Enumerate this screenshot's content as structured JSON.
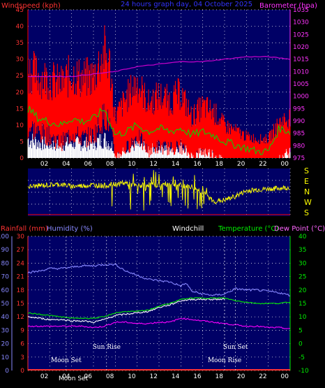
{
  "header": {
    "wind_title": "Windspeed (kph)",
    "date_title": "24 hours graph day, 04 October 2025",
    "baro_title": "Barometer (hpa)",
    "rain_title": "Rainfall (mm)",
    "humidity_title": "Humidity (%)",
    "windchill_title": "Windchill",
    "temperature_title": "Temperature (°C)",
    "dewpoint_title": "Dew Point (°C)"
  },
  "annotations": {
    "moon_set": "Moon Set",
    "sun_rise": "Sun Rise",
    "sun_set": "Sun Set",
    "moon_rise": "Moon Rise",
    "moon_phase_bottom": "Moon Set"
  },
  "colors": {
    "wind_avg": "#ff0000",
    "wind_gust": "#00dd00",
    "wind_low": "#ffffff",
    "barometer": "#cc00cc",
    "direction": "#ffff00",
    "rain": "#ff3333",
    "humidity": "#8888ff",
    "temperature": "#00ee00",
    "dewpoint": "#ff00ff",
    "windchill": "#ffffff",
    "plot_bg": "#000066"
  },
  "chart_data": [
    {
      "type": "line",
      "title": "24 hours graph day, 04 October 2025",
      "ylabel": "Windspeed (kph)",
      "y2label": "Barometer (hpa)",
      "x_ticks": [
        "02",
        "04",
        "06",
        "08",
        "10",
        "12",
        "14",
        "16",
        "18",
        "20",
        "22",
        "00"
      ],
      "x_range": [
        0,
        24
      ],
      "ylim": [
        0,
        45
      ],
      "y_ticks": [
        0,
        5,
        10,
        15,
        20,
        25,
        30,
        35,
        40,
        45
      ],
      "y2lim": [
        975,
        1035
      ],
      "y2_ticks": [
        975,
        980,
        985,
        990,
        995,
        1000,
        1005,
        1010,
        1015,
        1020,
        1025,
        1030,
        1035
      ],
      "grid": true,
      "series": [
        {
          "name": "Windspeed",
          "x": [
            0,
            1,
            2,
            3,
            4,
            5,
            6,
            7,
            7.5,
            8,
            9,
            10,
            11,
            12,
            13,
            14,
            15,
            16,
            17,
            18,
            19,
            20,
            21,
            22,
            23,
            24
          ],
          "values": [
            20,
            17,
            16,
            13,
            17,
            15,
            16,
            24,
            20,
            8,
            11,
            16,
            10,
            12,
            11,
            12,
            8,
            10,
            9,
            6,
            5,
            4,
            3,
            3,
            7,
            10
          ]
        },
        {
          "name": "Gust",
          "x": [
            0,
            1,
            2,
            3,
            4,
            5,
            6,
            7,
            7.5,
            8,
            9,
            10,
            11,
            12,
            13,
            14,
            15,
            16,
            17,
            18,
            19,
            20,
            21,
            22,
            23,
            24
          ],
          "values": [
            33,
            30,
            29,
            27,
            31,
            29,
            30,
            39,
            34,
            15,
            22,
            28,
            20,
            23,
            21,
            24,
            15,
            19,
            17,
            12,
            10,
            8,
            7,
            7,
            13,
            15
          ]
        },
        {
          "name": "Average",
          "x": [
            0,
            1,
            2,
            3,
            4,
            5,
            6,
            7,
            8,
            9,
            10,
            11,
            12,
            13,
            14,
            15,
            16,
            17,
            18,
            19,
            20,
            21,
            22,
            23,
            24
          ],
          "values": [
            15,
            12,
            11,
            10,
            12,
            11,
            12,
            15,
            7,
            8,
            10,
            8,
            9,
            8,
            9,
            7,
            8,
            7,
            5,
            4,
            3,
            2,
            2,
            9,
            8
          ]
        },
        {
          "name": "Barometer",
          "x": [
            0,
            2,
            4,
            6,
            8,
            10,
            12,
            14,
            16,
            18,
            20,
            22,
            24
          ],
          "values": [
            1008,
            1008,
            1008,
            1009,
            1010,
            1012,
            1013,
            1014,
            1014,
            1015,
            1016,
            1016,
            1015
          ]
        }
      ]
    },
    {
      "type": "line",
      "ylabel": "S E N W S",
      "y_ticks": [
        "S",
        "E",
        "N",
        "W",
        "S"
      ],
      "x_range": [
        0,
        24
      ],
      "ylim": [
        0,
        360
      ],
      "series": [
        {
          "name": "Direction",
          "x": [
            0,
            1,
            2,
            3,
            4,
            5,
            6,
            7,
            8,
            9,
            10,
            11,
            12,
            13,
            14,
            15,
            16,
            17,
            18,
            19,
            20,
            21,
            22,
            23,
            24
          ],
          "values": [
            220,
            230,
            235,
            240,
            225,
            230,
            235,
            230,
            240,
            250,
            225,
            240,
            235,
            245,
            230,
            220,
            180,
            110,
            120,
            150,
            190,
            200,
            205,
            210,
            215
          ]
        }
      ]
    },
    {
      "type": "line",
      "ylabel_left1": "Rainfall (mm)",
      "ylabel_left2": "Humidity (%)",
      "ylabel_right": "Temperature (°C)",
      "x_ticks": [
        "02",
        "04",
        "06",
        "08",
        "10",
        "12",
        "14",
        "16",
        "18",
        "20",
        "22",
        "00"
      ],
      "x_range": [
        0,
        24
      ],
      "humidity_lim": [
        0,
        100
      ],
      "humidity_ticks": [
        0,
        10,
        20,
        30,
        40,
        50,
        60,
        70,
        80,
        90,
        100
      ],
      "rain_lim": [
        0,
        30
      ],
      "rain_ticks": [
        0,
        3,
        6,
        9,
        12,
        15,
        18,
        21,
        24,
        27,
        30
      ],
      "temp_lim": [
        -10,
        40
      ],
      "temp_ticks": [
        -10,
        -5,
        0,
        5,
        10,
        15,
        20,
        25,
        30,
        35,
        40
      ],
      "grid": true,
      "series": [
        {
          "name": "Humidity",
          "x": [
            0,
            1,
            2,
            3,
            4,
            5,
            6,
            7,
            8,
            9,
            10,
            11,
            12,
            13,
            14,
            14.5,
            15,
            16,
            17,
            18,
            19,
            20,
            21,
            22,
            23,
            24
          ],
          "values": [
            73,
            74,
            76,
            76,
            77,
            78,
            78,
            79,
            79,
            74,
            71,
            68,
            67,
            66,
            63,
            65,
            59,
            57,
            56,
            57,
            61,
            60,
            60,
            59,
            58,
            56
          ]
        },
        {
          "name": "Temperature",
          "x": [
            0,
            1,
            2,
            3,
            4,
            5,
            6,
            7,
            8,
            9,
            10,
            11,
            12,
            13,
            14,
            15,
            16,
            17,
            18,
            19,
            20,
            21,
            22,
            23,
            24
          ],
          "values": [
            11.5,
            11,
            10.5,
            10,
            9.5,
            9.5,
            9.5,
            10,
            11.5,
            12,
            12,
            12.5,
            14,
            15,
            16.5,
            17,
            17,
            17,
            17,
            16,
            15.5,
            15,
            15,
            15,
            15.5
          ]
        },
        {
          "name": "Windchill",
          "x": [
            0,
            1,
            2,
            3,
            4,
            5,
            6,
            7,
            8,
            9,
            10,
            11,
            12,
            13,
            14,
            15,
            16,
            17,
            18
          ],
          "values": [
            10,
            9.5,
            9,
            9,
            8.5,
            8.5,
            8,
            9,
            10.5,
            11,
            11.5,
            12,
            13.5,
            14.5,
            16,
            16.5,
            16.5,
            16.5,
            16.5
          ]
        },
        {
          "name": "Dew Point",
          "x": [
            0,
            1,
            2,
            3,
            4,
            5,
            6,
            7,
            8,
            9,
            10,
            11,
            12,
            13,
            14,
            15,
            16,
            17,
            18,
            19,
            20,
            21,
            22,
            23,
            24
          ],
          "values": [
            6.5,
            6.5,
            6.5,
            6.5,
            6.5,
            6.5,
            6,
            6.5,
            8,
            8,
            7.5,
            7.5,
            8,
            8,
            9.5,
            9,
            8.5,
            8,
            7.5,
            7,
            6.5,
            6.5,
            6,
            6,
            5.5
          ]
        },
        {
          "name": "Rainfall",
          "x": [
            0,
            24
          ],
          "values": [
            0,
            0
          ]
        }
      ],
      "events": [
        {
          "label": "Moon Set",
          "hour": 3.5
        },
        {
          "label": "Sun Rise",
          "hour": 7.2
        },
        {
          "label": "Sun Set",
          "hour": 19.0
        },
        {
          "label": "Moon Rise",
          "hour": 18.0
        }
      ]
    }
  ]
}
